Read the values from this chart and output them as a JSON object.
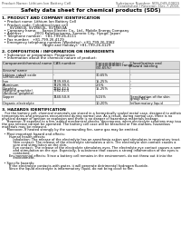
{
  "background_color": "#ffffff",
  "header_left": "Product Name: Lithium Ion Battery Cell",
  "header_right1": "Substance Number: SDS-049-00815",
  "header_right2": "Established / Revision: Dec.7,2016",
  "main_title": "Safety data sheet for chemical products (SDS)",
  "section1_title": "1. PRODUCT AND COMPANY IDENTIFICATION",
  "section1_lines": [
    "  • Product name: Lithium Ion Battery Cell",
    "  • Product code: Cylindrical-type cell",
    "       SV18650J, SV18650L, SV18650A",
    "  • Company name:     Sanyo Electric Co., Ltd., Mobile Energy Company",
    "  • Address:           2001 Kamikoriyama, Sumoto City, Hyogo, Japan",
    "  • Telephone number:   +81-799-26-4111",
    "  • Fax number:   +81-799-26-4129",
    "  • Emergency telephone number (Weekday): +81-799-26-3962",
    "                                    (Night and Holiday): +81-799-26-4129"
  ],
  "section2_title": "2. COMPOSITION / INFORMATION ON INGREDIENTS",
  "section2_lines": [
    "  • Substance or preparation: Preparation",
    "  • Information about the chemical nature of product:"
  ],
  "table_col_headers": [
    "Component/chemical name",
    "CAS number",
    "Concentration /\nConcentration range\n(30-65%)",
    "Classification and\nhazard labeling"
  ],
  "table_sub_header": "Several name",
  "table_rows": [
    [
      "Lithium cobalt oxide\n(LiMnxCoxO2)",
      "-",
      "30-65%",
      "-"
    ],
    [
      "Iron",
      "7439-89-6",
      "15-25%",
      "-"
    ],
    [
      "Aluminum",
      "7429-90-5",
      "2-5%",
      "-"
    ],
    [
      "Graphite\n(Natural graphite)\n(Artificial graphite)",
      "7782-42-5\n7782-42-5",
      "15-25%",
      "-"
    ],
    [
      "Copper",
      "7440-50-8",
      "5-15%",
      "Sensitization of the skin\ngroup No.2"
    ],
    [
      "Organic electrolyte",
      "-",
      "10-20%",
      "Inflammatory liquid"
    ]
  ],
  "section3_title": "3. HAZARDS IDENTIFICATION",
  "section3_text": [
    "   For the battery cell, chemical materials are stored in a hermetically sealed metal case, designed to withstand",
    "temperatures and pressures encountered during normal use. As a result, during normal use, there is no",
    "physical danger of ignition or explosion and there is no danger of hazardous materials leakage.",
    "     However, if exposed to a fire, added mechanical shocks, decompose, when electrolyte solutions may issue.",
    "the gas release cannot be operated. The battery cell case will be breached or Fire-stations, hazardous",
    "materials may be released.",
    "     Moreover, if heated strongly by the surrounding fire, some gas may be emitted.",
    "",
    "  • Most important hazard and effects:",
    "       Human health effects:",
    "           Inhalation: The release of the electrolyte has an anesthesia action and stimulates in respiratory tract.",
    "           Skin contact: The release of the electrolyte stimulates a skin. The electrolyte skin contact causes a",
    "           sore and stimulation on the skin.",
    "           Eye contact: The release of the electrolyte stimulates eyes. The electrolyte eye contact causes a sore",
    "           and stimulation on the eye. Especially, a substance that causes a strong inflammation of the eyes is",
    "           contained.",
    "       Environmental effects: Since a battery cell remains in the environment, do not throw out it into the",
    "           environment.",
    "",
    "  • Specific hazards:",
    "       If the electrolyte contacts with water, it will generate detrimental hydrogen fluoride.",
    "       Since the liquid electrolyte is inflammatory liquid, do not bring close to fire."
  ]
}
